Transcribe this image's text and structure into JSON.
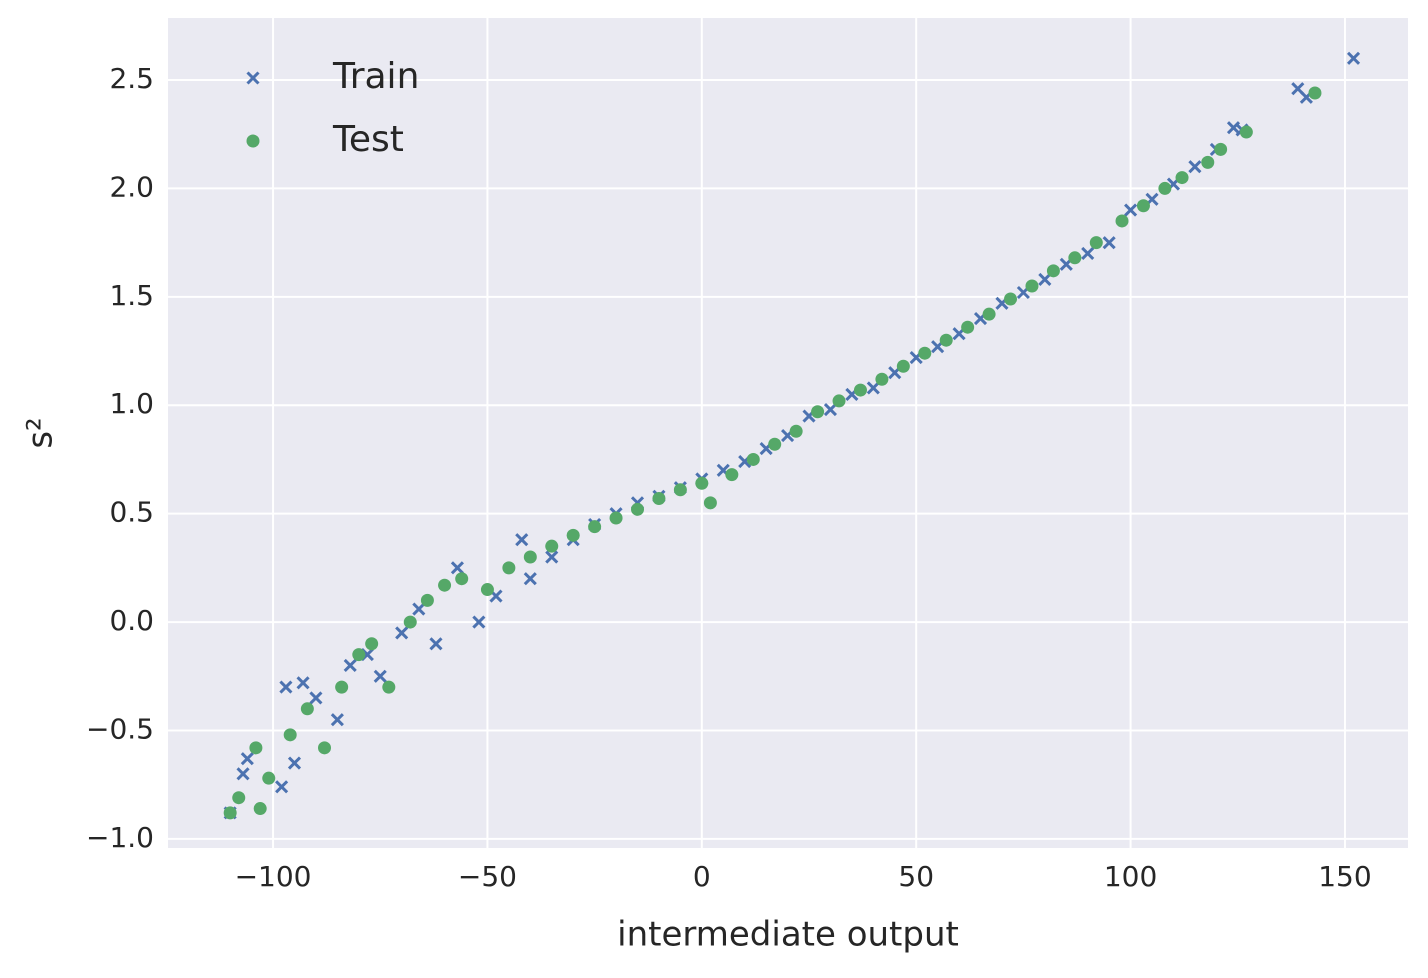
{
  "chart_data": {
    "type": "scatter",
    "xlabel": "intermediate output",
    "ylabel": "s²",
    "xlim": [
      -124.5,
      164.7
    ],
    "ylim": [
      -1.042,
      2.786
    ],
    "xticks": [
      {
        "value": -100,
        "label": "−100"
      },
      {
        "value": -50,
        "label": "−50"
      },
      0,
      50,
      100,
      150
    ],
    "yticks": [
      {
        "value": -1,
        "label": "−1.0"
      },
      {
        "value": -0.5,
        "label": "−0.5"
      },
      {
        "value": 0,
        "label": "0.0"
      },
      0.5,
      {
        "value": 1,
        "label": "1.0"
      },
      1.5,
      {
        "value": 2,
        "label": "2.0"
      },
      2.5
    ],
    "grid": true,
    "legend": "upper left",
    "series": [
      {
        "name": "Train",
        "color": "#4c72b0",
        "marker": "x",
        "x": [
          -110,
          -107,
          -106,
          -98,
          -97,
          -95,
          -93,
          -90,
          -85,
          -82,
          -78,
          -75,
          -70,
          -66,
          -62,
          -57,
          -52,
          -48,
          -42,
          -40,
          -35,
          -30,
          -25,
          -20,
          -15,
          -10,
          -5,
          0,
          5,
          10,
          15,
          20,
          25,
          30,
          35,
          40,
          45,
          50,
          55,
          60,
          65,
          70,
          75,
          80,
          85,
          90,
          95,
          100,
          105,
          110,
          115,
          120,
          124,
          126,
          139,
          141,
          152
        ],
        "values": [
          -0.88,
          -0.7,
          -0.63,
          -0.76,
          -0.3,
          -0.65,
          -0.28,
          -0.35,
          -0.45,
          -0.2,
          -0.15,
          -0.25,
          -0.05,
          0.06,
          -0.1,
          0.25,
          0.0,
          0.12,
          0.38,
          0.2,
          0.3,
          0.38,
          0.45,
          0.5,
          0.55,
          0.58,
          0.62,
          0.66,
          0.7,
          0.74,
          0.8,
          0.86,
          0.95,
          0.98,
          1.05,
          1.08,
          1.15,
          1.22,
          1.27,
          1.33,
          1.4,
          1.47,
          1.52,
          1.58,
          1.65,
          1.7,
          1.75,
          1.9,
          1.95,
          2.02,
          2.1,
          2.18,
          2.28,
          2.27,
          2.46,
          2.42,
          2.6
        ]
      },
      {
        "name": "Test",
        "color": "#55a868",
        "marker": "o",
        "x": [
          -110,
          -108,
          -103,
          -104,
          -101,
          -96,
          -92,
          -88,
          -84,
          -80,
          -77,
          -73,
          -68,
          -64,
          -60,
          -56,
          -50,
          -45,
          -40,
          -35,
          -30,
          -25,
          -20,
          -15,
          -10,
          -5,
          0,
          2,
          7,
          12,
          17,
          22,
          27,
          32,
          37,
          42,
          47,
          52,
          57,
          62,
          67,
          72,
          77,
          82,
          87,
          92,
          98,
          103,
          108,
          112,
          118,
          121,
          127,
          143
        ],
        "values": [
          -0.88,
          -0.81,
          -0.86,
          -0.58,
          -0.72,
          -0.52,
          -0.4,
          -0.58,
          -0.3,
          -0.15,
          -0.1,
          -0.3,
          0.0,
          0.1,
          0.17,
          0.2,
          0.15,
          0.25,
          0.3,
          0.35,
          0.4,
          0.44,
          0.48,
          0.52,
          0.57,
          0.61,
          0.64,
          0.55,
          0.68,
          0.75,
          0.82,
          0.88,
          0.97,
          1.02,
          1.07,
          1.12,
          1.18,
          1.24,
          1.3,
          1.36,
          1.42,
          1.49,
          1.55,
          1.62,
          1.68,
          1.75,
          1.85,
          1.92,
          2.0,
          2.05,
          2.12,
          2.18,
          2.26,
          2.44
        ]
      }
    ]
  }
}
